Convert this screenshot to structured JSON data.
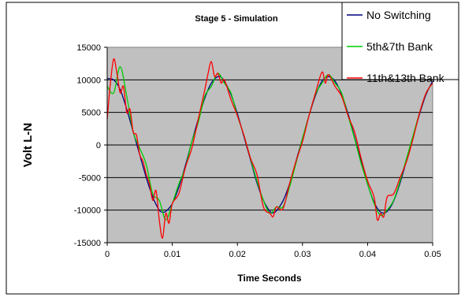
{
  "chart_data": {
    "type": "line",
    "title": "Stage 5 - Simulation",
    "xlabel": "Time Seconds",
    "ylabel": "Volt L-N",
    "xlim": [
      0,
      0.05
    ],
    "ylim": [
      -15000,
      15000
    ],
    "x_ticks": [
      0,
      0.01,
      0.02,
      0.03,
      0.04,
      0.05
    ],
    "y_ticks": [
      -15000,
      -10000,
      -5000,
      0,
      5000,
      10000,
      15000
    ],
    "x_tick_labels": [
      "0",
      "0.01",
      "0.02",
      "0.03",
      "0.04",
      "0.05"
    ],
    "y_tick_labels": [
      "-15000",
      "-10000",
      "-5000",
      "0",
      "5000",
      "10000",
      "15000"
    ],
    "grid": "horizontal",
    "legend_position": "top-right",
    "plot_background": "#c0c0c0",
    "series": [
      {
        "name": "No Switching",
        "color": "#000080",
        "x": [
          0,
          0.001,
          0.002,
          0.003,
          0.004,
          0.005,
          0.006,
          0.007,
          0.008,
          0.0085,
          0.009,
          0.01,
          0.011,
          0.012,
          0.013,
          0.014,
          0.015,
          0.016,
          0.017,
          0.0175,
          0.018,
          0.019,
          0.02,
          0.021,
          0.022,
          0.023,
          0.024,
          0.025,
          0.0255,
          0.026,
          0.027,
          0.028,
          0.029,
          0.03,
          0.031,
          0.032,
          0.033,
          0.034,
          0.035,
          0.036,
          0.037,
          0.038,
          0.039,
          0.04,
          0.041,
          0.042,
          0.043,
          0.044,
          0.045,
          0.046,
          0.047,
          0.048,
          0.049,
          0.05
        ],
        "y": [
          10200,
          10000,
          8500,
          5500,
          2000,
          -1500,
          -5000,
          -8000,
          -10000,
          -10300,
          -10200,
          -9000,
          -6500,
          -3200,
          500,
          4000,
          7200,
          9500,
          10500,
          10400,
          9800,
          7800,
          4800,
          1300,
          -2200,
          -5800,
          -8500,
          -10200,
          -10400,
          -10100,
          -8600,
          -6000,
          -2500,
          1000,
          4500,
          7600,
          9800,
          10500,
          9800,
          7800,
          4800,
          1200,
          -2500,
          -6000,
          -8800,
          -10300,
          -10200,
          -8600,
          -5800,
          -2300,
          1300,
          4800,
          7800,
          9800
        ]
      },
      {
        "name": "5th&7th Bank",
        "color": "#00cc00",
        "x": [
          0,
          0.001,
          0.002,
          0.003,
          0.004,
          0.005,
          0.006,
          0.007,
          0.008,
          0.009,
          0.01,
          0.011,
          0.012,
          0.013,
          0.014,
          0.015,
          0.016,
          0.017,
          0.018,
          0.019,
          0.02,
          0.021,
          0.022,
          0.023,
          0.024,
          0.025,
          0.026,
          0.027,
          0.028,
          0.029,
          0.03,
          0.031,
          0.032,
          0.033,
          0.034,
          0.035,
          0.036,
          0.037,
          0.038,
          0.039,
          0.04,
          0.041,
          0.042,
          0.043,
          0.044,
          0.045,
          0.046,
          0.047,
          0.048,
          0.049,
          0.05
        ],
        "y": [
          9000,
          8000,
          12000,
          7500,
          2000,
          -500,
          -3000,
          -7500,
          -8500,
          -11500,
          -9000,
          -6000,
          -3500,
          500,
          3500,
          7500,
          9000,
          11000,
          9500,
          8000,
          4500,
          1500,
          -2000,
          -5500,
          -8500,
          -10500,
          -9500,
          -9500,
          -6500,
          -2800,
          1000,
          4500,
          7800,
          9500,
          10800,
          9500,
          8000,
          4500,
          1000,
          -2800,
          -6000,
          -9000,
          -10800,
          -10000,
          -8500,
          -5500,
          -2000,
          1500,
          5000,
          8000,
          9500
        ]
      },
      {
        "name": "11th&13th Bank",
        "color": "#ff0000",
        "x": [
          0,
          0.0005,
          0.001,
          0.0015,
          0.002,
          0.0025,
          0.003,
          0.0035,
          0.004,
          0.0045,
          0.005,
          0.0055,
          0.006,
          0.0065,
          0.007,
          0.0075,
          0.008,
          0.0085,
          0.009,
          0.0095,
          0.01,
          0.011,
          0.012,
          0.013,
          0.014,
          0.015,
          0.0155,
          0.016,
          0.0165,
          0.017,
          0.0175,
          0.018,
          0.019,
          0.02,
          0.021,
          0.022,
          0.023,
          0.024,
          0.025,
          0.0255,
          0.026,
          0.027,
          0.028,
          0.029,
          0.03,
          0.031,
          0.032,
          0.033,
          0.0335,
          0.034,
          0.035,
          0.036,
          0.037,
          0.038,
          0.039,
          0.04,
          0.041,
          0.0415,
          0.042,
          0.0425,
          0.043,
          0.044,
          0.045,
          0.046,
          0.047,
          0.048,
          0.049,
          0.05
        ],
        "y": [
          4000,
          9500,
          13200,
          11000,
          8000,
          9000,
          5000,
          5500,
          2000,
          1500,
          -1500,
          -2500,
          -4500,
          -6000,
          -8500,
          -7000,
          -11500,
          -14300,
          -10500,
          -12000,
          -9000,
          -7500,
          -3500,
          -500,
          4000,
          8500,
          11000,
          12800,
          10500,
          11000,
          9500,
          10000,
          7000,
          4500,
          1500,
          -2000,
          -4500,
          -9500,
          -10500,
          -11000,
          -9500,
          -9800,
          -6000,
          -2500,
          500,
          4500,
          8000,
          11200,
          9500,
          10800,
          9000,
          7500,
          4500,
          2000,
          -2000,
          -5500,
          -8000,
          -11500,
          -10500,
          -11000,
          -8000,
          -7500,
          -5000,
          -2500,
          1000,
          5000,
          8000,
          9500
        ]
      }
    ]
  }
}
